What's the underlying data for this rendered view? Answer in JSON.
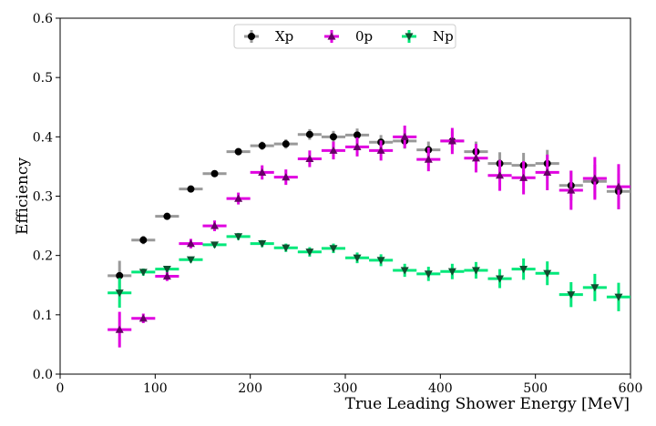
{
  "chart_data": {
    "type": "scatter",
    "xlabel": "True Leading Shower Energy [MeV]",
    "ylabel": "Efficiency",
    "xlim": [
      0,
      600
    ],
    "ylim": [
      0.0,
      0.6
    ],
    "xticks": [
      "0",
      "100",
      "200",
      "300",
      "400",
      "500",
      "600"
    ],
    "yticks": [
      "0.0",
      "0.1",
      "0.2",
      "0.3",
      "0.4",
      "0.5",
      "0.6"
    ],
    "grid": false,
    "legend_position": "top-center",
    "bin_half_width": 12.5,
    "series": [
      {
        "name": "Xp",
        "color": "#999999",
        "marker_color": "#000000",
        "marker": "circle",
        "x": [
          62.5,
          87.5,
          112.5,
          137.5,
          162.5,
          187.5,
          212.5,
          237.5,
          262.5,
          287.5,
          312.5,
          337.5,
          362.5,
          387.5,
          412.5,
          437.5,
          462.5,
          487.5,
          512.5,
          537.5,
          562.5,
          587.5
        ],
        "y": [
          0.166,
          0.226,
          0.266,
          0.312,
          0.338,
          0.375,
          0.385,
          0.388,
          0.404,
          0.4,
          0.403,
          0.391,
          0.393,
          0.378,
          0.393,
          0.375,
          0.355,
          0.352,
          0.355,
          0.318,
          0.325,
          0.308
        ],
        "yerr": [
          0.025,
          0.007,
          0.005,
          0.005,
          0.005,
          0.006,
          0.007,
          0.008,
          0.009,
          0.01,
          0.011,
          0.012,
          0.013,
          0.014,
          0.016,
          0.017,
          0.019,
          0.021,
          0.023,
          0.025,
          0.028,
          0.03
        ]
      },
      {
        "name": "0p",
        "color": "#e000e0",
        "marker_color": "#660066",
        "marker": "triangle-up",
        "x": [
          62.5,
          87.5,
          112.5,
          137.5,
          162.5,
          187.5,
          212.5,
          237.5,
          262.5,
          287.5,
          312.5,
          337.5,
          362.5,
          387.5,
          412.5,
          437.5,
          462.5,
          487.5,
          512.5,
          537.5,
          562.5,
          587.5
        ],
        "y": [
          0.075,
          0.094,
          0.165,
          0.22,
          0.25,
          0.296,
          0.34,
          0.332,
          0.363,
          0.377,
          0.383,
          0.377,
          0.4,
          0.362,
          0.393,
          0.364,
          0.335,
          0.331,
          0.34,
          0.31,
          0.33,
          0.316
        ],
        "yerr": [
          0.03,
          0.008,
          0.008,
          0.008,
          0.009,
          0.01,
          0.012,
          0.013,
          0.014,
          0.015,
          0.016,
          0.017,
          0.019,
          0.02,
          0.022,
          0.024,
          0.026,
          0.028,
          0.03,
          0.033,
          0.036,
          0.038
        ]
      },
      {
        "name": "Np",
        "color": "#00e87a",
        "marker_color": "#0f4f30",
        "marker": "triangle-down",
        "x": [
          62.5,
          87.5,
          112.5,
          137.5,
          162.5,
          187.5,
          212.5,
          237.5,
          262.5,
          287.5,
          312.5,
          337.5,
          362.5,
          387.5,
          412.5,
          437.5,
          462.5,
          487.5,
          512.5,
          537.5,
          562.5,
          587.5
        ],
        "y": [
          0.137,
          0.172,
          0.177,
          0.193,
          0.218,
          0.232,
          0.22,
          0.213,
          0.206,
          0.212,
          0.196,
          0.192,
          0.175,
          0.169,
          0.173,
          0.175,
          0.161,
          0.177,
          0.17,
          0.134,
          0.146,
          0.13
        ],
        "yerr": [
          0.025,
          0.006,
          0.005,
          0.005,
          0.005,
          0.006,
          0.006,
          0.007,
          0.008,
          0.008,
          0.009,
          0.01,
          0.011,
          0.012,
          0.013,
          0.014,
          0.016,
          0.018,
          0.02,
          0.021,
          0.023,
          0.024
        ]
      }
    ]
  }
}
